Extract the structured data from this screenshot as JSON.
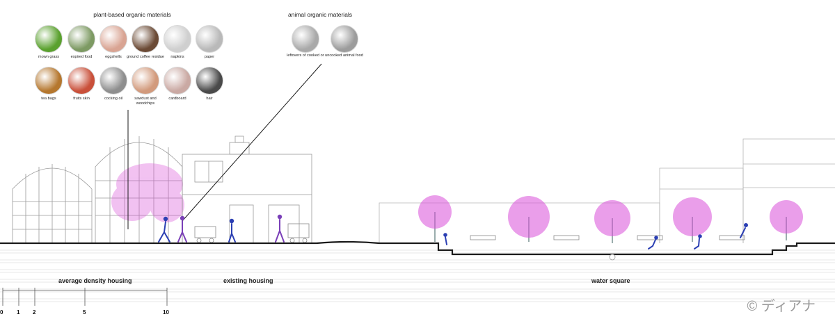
{
  "headers": {
    "plant": "plant-based organic materials",
    "animal": "animal organic materials"
  },
  "plant_items": [
    {
      "label": "mown grass",
      "color": "#5aa12e",
      "icon": "grass-icon"
    },
    {
      "label": "expired food",
      "color": "#7d9a63",
      "icon": "food-icon"
    },
    {
      "label": "eggshells",
      "color": "#d9a493",
      "icon": "eggshell-icon"
    },
    {
      "label": "ground coffee residue",
      "color": "#6b4a35",
      "icon": "coffee-icon"
    },
    {
      "label": "napkins",
      "color": "#cfcfcf",
      "icon": "napkin-icon"
    },
    {
      "label": "paper",
      "color": "#b9b9b9",
      "icon": "paper-icon"
    },
    {
      "label": "tea bags",
      "color": "#b5772e",
      "icon": "teabag-icon"
    },
    {
      "label": "fruits skin",
      "color": "#c9503a",
      "icon": "fruit-icon"
    },
    {
      "label": "cocking oil",
      "color": "#8e8e8e",
      "icon": "oil-icon"
    },
    {
      "label": "sawdust and woodchips",
      "color": "#d29a7c",
      "icon": "sawdust-icon"
    },
    {
      "label": "cardboard",
      "color": "#caa9a3",
      "icon": "cardboard-icon"
    },
    {
      "label": "hair",
      "color": "#4a4a4a",
      "icon": "hair-icon"
    }
  ],
  "animal_items": [
    {
      "label": "leftovers of cooked or uncooked animal food",
      "color": "#a9a9a9",
      "icon": "meat-icon"
    },
    {
      "label": "",
      "color": "#9c9c9c",
      "icon": "bone-icon"
    }
  ],
  "zones": {
    "a": "average density housing",
    "b": "existing housing",
    "c": "water square"
  },
  "scale_ticks": [
    "0",
    "1",
    "2",
    "5",
    "10"
  ],
  "copyright": "© ディアナ",
  "colors": {
    "tree": "#d94fd8",
    "people": "#2b3fb3",
    "people_alt": "#7a3fb8",
    "ground": "#1a1a1a"
  }
}
